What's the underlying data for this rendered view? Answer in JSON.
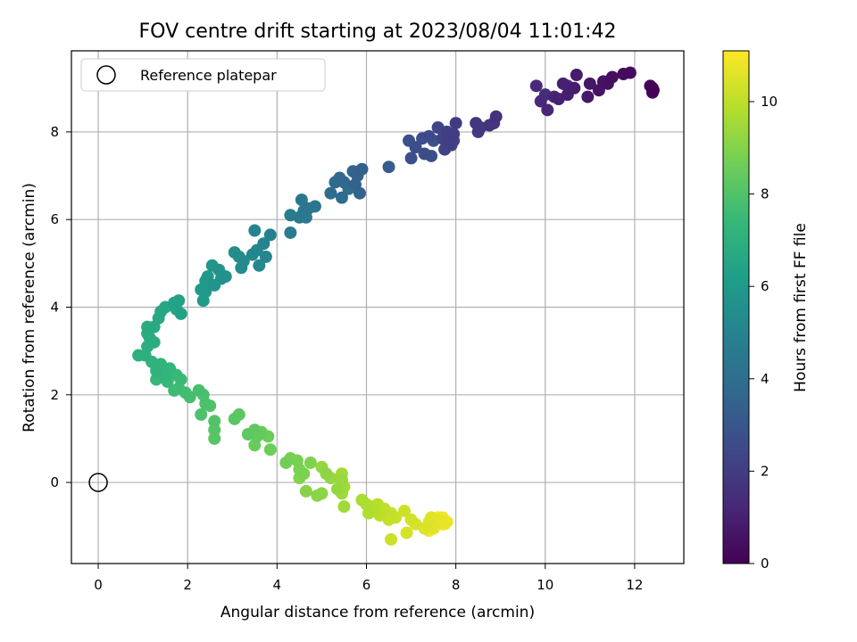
{
  "chart_data": {
    "type": "scatter",
    "title": "FOV centre drift starting at 2023/08/04 11:01:42",
    "xlabel": "Angular distance from reference (arcmin)",
    "ylabel": "Rotation from reference (arcmin)",
    "xlim": [
      -0.6,
      13.1
    ],
    "ylim": [
      -1.85,
      9.85
    ],
    "xticks": [
      0,
      2,
      4,
      6,
      8,
      10,
      12
    ],
    "yticks": [
      0,
      2,
      4,
      6,
      8
    ],
    "grid": true,
    "legend": {
      "placement": "top-left",
      "entries": [
        "Reference platepar"
      ]
    },
    "reference_point": {
      "x": 0,
      "y": 0,
      "label": "Reference platepar"
    },
    "colorbar": {
      "label": "Hours from first FF file",
      "colormap": "viridis",
      "range": [
        0,
        11.1
      ],
      "ticks": [
        0,
        2,
        4,
        6,
        8,
        10
      ]
    },
    "points": [
      [
        12.4,
        9.0,
        0.05
      ],
      [
        12.4,
        8.9,
        0.1
      ],
      [
        12.35,
        9.05,
        0.15
      ],
      [
        12.42,
        8.95,
        0.2
      ],
      [
        11.9,
        9.35,
        0.3
      ],
      [
        11.75,
        9.32,
        0.35
      ],
      [
        11.5,
        9.25,
        0.45
      ],
      [
        11.4,
        9.1,
        0.5
      ],
      [
        11.3,
        9.15,
        0.55
      ],
      [
        11.2,
        8.95,
        0.6
      ],
      [
        11.0,
        9.1,
        0.7
      ],
      [
        10.95,
        8.8,
        0.75
      ],
      [
        10.7,
        9.3,
        0.85
      ],
      [
        10.65,
        9.0,
        0.9
      ],
      [
        10.5,
        8.85,
        0.95
      ],
      [
        10.4,
        9.1,
        1.0
      ],
      [
        10.3,
        8.75,
        1.05
      ],
      [
        10.2,
        8.8,
        1.1
      ],
      [
        10.05,
        8.5,
        1.2
      ],
      [
        9.9,
        8.7,
        1.3
      ],
      [
        9.8,
        9.05,
        1.35
      ],
      [
        10.5,
        9.05,
        1.4
      ],
      [
        10.0,
        8.85,
        1.45
      ],
      [
        8.9,
        8.35,
        1.6
      ],
      [
        8.85,
        8.2,
        1.65
      ],
      [
        8.75,
        8.15,
        1.7
      ],
      [
        8.55,
        8.1,
        1.75
      ],
      [
        8.45,
        8.2,
        1.8
      ],
      [
        8.5,
        8.0,
        1.85
      ],
      [
        8.0,
        8.2,
        1.95
      ],
      [
        7.95,
        7.95,
        2.0
      ],
      [
        7.85,
        7.75,
        2.05
      ],
      [
        7.8,
        8.0,
        2.1
      ],
      [
        7.75,
        7.6,
        2.15
      ],
      [
        7.9,
        7.7,
        2.2
      ],
      [
        7.7,
        7.85,
        2.25
      ],
      [
        7.6,
        8.1,
        2.3
      ],
      [
        7.95,
        7.8,
        2.35
      ],
      [
        7.4,
        7.9,
        2.5
      ],
      [
        7.3,
        7.5,
        2.55
      ],
      [
        7.25,
        7.85,
        2.6
      ],
      [
        7.1,
        7.65,
        2.65
      ],
      [
        7.0,
        7.4,
        2.7
      ],
      [
        6.95,
        7.8,
        2.75
      ],
      [
        7.45,
        7.45,
        2.8
      ],
      [
        7.5,
        7.8,
        2.85
      ],
      [
        6.5,
        7.2,
        3.2
      ],
      [
        5.9,
        7.15,
        3.4
      ],
      [
        5.8,
        7.0,
        3.45
      ],
      [
        5.75,
        6.8,
        3.5
      ],
      [
        5.85,
        6.6,
        3.55
      ],
      [
        5.7,
        7.1,
        3.6
      ],
      [
        5.5,
        6.85,
        3.7
      ],
      [
        5.4,
        6.95,
        3.75
      ],
      [
        5.3,
        6.85,
        3.8
      ],
      [
        5.2,
        6.6,
        3.9
      ],
      [
        5.45,
        6.5,
        3.95
      ],
      [
        5.6,
        6.7,
        4.0
      ],
      [
        4.85,
        6.3,
        4.3
      ],
      [
        4.7,
        6.25,
        4.35
      ],
      [
        4.55,
        6.45,
        4.4
      ],
      [
        4.6,
        6.2,
        4.45
      ],
      [
        4.65,
        6.05,
        4.5
      ],
      [
        4.5,
        6.05,
        4.55
      ],
      [
        4.3,
        6.1,
        4.6
      ],
      [
        4.3,
        5.7,
        4.65
      ],
      [
        3.85,
        5.65,
        4.9
      ],
      [
        3.7,
        5.45,
        4.95
      ],
      [
        3.5,
        5.75,
        5.0
      ],
      [
        3.55,
        5.3,
        5.05
      ],
      [
        3.75,
        5.15,
        5.1
      ],
      [
        3.45,
        5.2,
        5.15
      ],
      [
        3.6,
        4.95,
        5.2
      ],
      [
        3.25,
        5.05,
        5.3
      ],
      [
        3.2,
        4.9,
        5.35
      ],
      [
        3.15,
        5.15,
        5.4
      ],
      [
        3.05,
        5.25,
        5.45
      ],
      [
        2.85,
        4.7,
        5.6
      ],
      [
        2.7,
        4.85,
        5.65
      ],
      [
        2.75,
        4.65,
        5.7
      ],
      [
        2.6,
        4.5,
        5.75
      ],
      [
        2.55,
        4.95,
        5.8
      ],
      [
        2.45,
        4.7,
        5.85
      ],
      [
        2.4,
        4.6,
        5.9
      ],
      [
        2.4,
        4.35,
        5.95
      ],
      [
        2.3,
        4.4,
        6.0
      ],
      [
        2.35,
        4.15,
        6.05
      ],
      [
        1.85,
        3.85,
        6.3
      ],
      [
        1.8,
        4.15,
        6.35
      ],
      [
        1.7,
        4.1,
        6.4
      ],
      [
        1.75,
        3.95,
        6.45
      ],
      [
        1.5,
        4.0,
        6.55
      ],
      [
        1.4,
        3.9,
        6.6
      ],
      [
        1.35,
        3.75,
        6.65
      ],
      [
        1.25,
        3.55,
        6.7
      ],
      [
        1.1,
        3.55,
        6.75
      ],
      [
        1.1,
        3.4,
        6.8
      ],
      [
        1.15,
        3.3,
        6.85
      ],
      [
        1.25,
        3.2,
        6.9
      ],
      [
        1.1,
        3.1,
        6.95
      ],
      [
        0.9,
        2.9,
        7.0
      ],
      [
        1.05,
        2.9,
        7.05
      ],
      [
        1.2,
        2.75,
        7.1
      ],
      [
        1.3,
        2.55,
        7.15
      ],
      [
        1.4,
        2.7,
        7.2
      ],
      [
        1.45,
        2.5,
        7.25
      ],
      [
        1.5,
        2.45,
        7.3
      ],
      [
        1.6,
        2.6,
        7.35
      ],
      [
        1.3,
        2.35,
        7.4
      ],
      [
        1.55,
        2.3,
        7.45
      ],
      [
        1.75,
        2.45,
        7.5
      ],
      [
        1.85,
        2.35,
        7.55
      ],
      [
        1.7,
        2.1,
        7.6
      ],
      [
        1.8,
        2.15,
        7.65
      ],
      [
        1.95,
        2.05,
        7.7
      ],
      [
        2.05,
        1.95,
        7.75
      ],
      [
        2.25,
        2.1,
        7.8
      ],
      [
        2.35,
        2.0,
        7.85
      ],
      [
        2.4,
        1.8,
        7.9
      ],
      [
        2.3,
        1.55,
        7.95
      ],
      [
        2.5,
        1.75,
        8.0
      ],
      [
        2.6,
        1.4,
        8.05
      ],
      [
        2.6,
        1.2,
        8.1
      ],
      [
        2.6,
        1.0,
        8.15
      ],
      [
        3.05,
        1.45,
        8.2
      ],
      [
        3.15,
        1.55,
        8.25
      ],
      [
        3.35,
        1.1,
        8.3
      ],
      [
        3.5,
        1.2,
        8.35
      ],
      [
        3.55,
        1.05,
        8.4
      ],
      [
        3.65,
        1.15,
        8.45
      ],
      [
        3.5,
        0.85,
        8.5
      ],
      [
        3.8,
        1.05,
        8.55
      ],
      [
        3.85,
        0.75,
        8.6
      ],
      [
        4.2,
        0.45,
        8.7
      ],
      [
        4.3,
        0.55,
        8.75
      ],
      [
        4.45,
        0.5,
        8.8
      ],
      [
        4.5,
        0.3,
        8.85
      ],
      [
        4.6,
        0.2,
        8.9
      ],
      [
        4.75,
        0.45,
        8.95
      ],
      [
        4.5,
        0.1,
        9.0
      ],
      [
        4.65,
        -0.2,
        9.05
      ],
      [
        4.9,
        -0.3,
        9.1
      ],
      [
        5.0,
        -0.25,
        9.15
      ],
      [
        5.1,
        0.2,
        9.2
      ],
      [
        5.0,
        0.35,
        9.25
      ],
      [
        5.2,
        0.1,
        9.3
      ],
      [
        5.35,
        -0.15,
        9.35
      ],
      [
        5.45,
        0.05,
        9.4
      ],
      [
        5.45,
        -0.25,
        9.45
      ],
      [
        5.5,
        -0.55,
        9.5
      ],
      [
        5.45,
        0.2,
        9.55
      ],
      [
        5.5,
        -0.1,
        9.6
      ],
      [
        5.9,
        -0.4,
        9.7
      ],
      [
        6.0,
        -0.5,
        9.75
      ],
      [
        6.05,
        -0.7,
        9.8
      ],
      [
        6.15,
        -0.55,
        9.85
      ],
      [
        6.2,
        -0.65,
        9.9
      ],
      [
        6.25,
        -0.5,
        9.95
      ],
      [
        6.3,
        -0.75,
        10.0
      ],
      [
        6.4,
        -0.6,
        10.05
      ],
      [
        6.5,
        -0.85,
        10.1
      ],
      [
        6.55,
        -0.7,
        10.15
      ],
      [
        6.65,
        -0.8,
        10.2
      ],
      [
        6.55,
        -1.3,
        10.25
      ],
      [
        6.85,
        -0.65,
        10.3
      ],
      [
        7.0,
        -0.85,
        10.35
      ],
      [
        6.9,
        -1.15,
        10.4
      ],
      [
        7.1,
        -0.95,
        10.45
      ],
      [
        7.3,
        -1.05,
        10.5
      ],
      [
        7.4,
        -0.9,
        10.55
      ],
      [
        7.45,
        -0.8,
        10.6
      ],
      [
        7.5,
        -1.05,
        10.65
      ],
      [
        7.6,
        -0.85,
        10.7
      ],
      [
        7.7,
        -0.95,
        10.75
      ],
      [
        7.8,
        -0.9,
        10.8
      ],
      [
        7.7,
        -0.8,
        10.85
      ],
      [
        7.5,
        -0.85,
        10.9
      ],
      [
        7.4,
        -1.1,
        10.95
      ],
      [
        7.75,
        -0.95,
        11.0
      ],
      [
        7.6,
        -0.8,
        11.05
      ]
    ]
  },
  "colors": {
    "viridis_stops": [
      "#440154",
      "#482878",
      "#3e4989",
      "#31688e",
      "#26828e",
      "#1f9e89",
      "#35b779",
      "#6ece58",
      "#b5de2b",
      "#fde725"
    ]
  }
}
